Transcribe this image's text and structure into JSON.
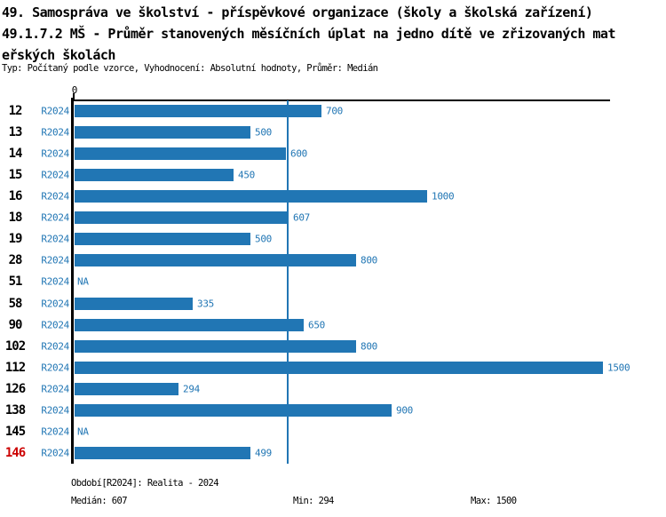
{
  "title": {
    "line1": "49. Samospráva ve školství - příspěvkové organizace (školy a školská zařízení)",
    "line2": "49.1.7.2 MŠ - Průměr stanovených měsíčních úplat na jedno dítě ve zřizovaných mat",
    "line3": "eřských školách",
    "subtitle": "Typ: Počítaný podle vzorce, Vyhodnocení: Absolutní hodnoty, Průměr: Medián"
  },
  "chart_data": {
    "type": "bar",
    "orientation": "horizontal",
    "title": "49.1.7.2 MŠ - Průměr stanovených měsíčních úplat na jedno dítě ve zřizovaných mateřských školách",
    "categories": [
      "12",
      "13",
      "14",
      "15",
      "16",
      "18",
      "19",
      "28",
      "51",
      "58",
      "90",
      "102",
      "112",
      "126",
      "138",
      "145",
      "146"
    ],
    "series": [
      {
        "name": "R2024",
        "values": [
          700,
          500,
          600,
          450,
          1000,
          607,
          500,
          800,
          null,
          335,
          650,
          800,
          1500,
          294,
          900,
          null,
          499
        ]
      }
    ],
    "na_text": "NA",
    "highlighted_category": "146",
    "axis_zero_label": "0",
    "xlim": [
      0,
      1520
    ],
    "median_line_value": 607,
    "grid": false,
    "legend": "none",
    "stats": {
      "median": 607,
      "min": 294,
      "max": 1500
    }
  },
  "footer": {
    "period": "Období[R2024]: Realita - 2024",
    "median": "Medián: 607",
    "min": "Min: 294",
    "max": "Max: 1500"
  },
  "colors": {
    "bar_blue": "#2176b4",
    "text_blue": "#2176b4",
    "highlight_red": "#cc0000",
    "axis_black": "#000000"
  }
}
